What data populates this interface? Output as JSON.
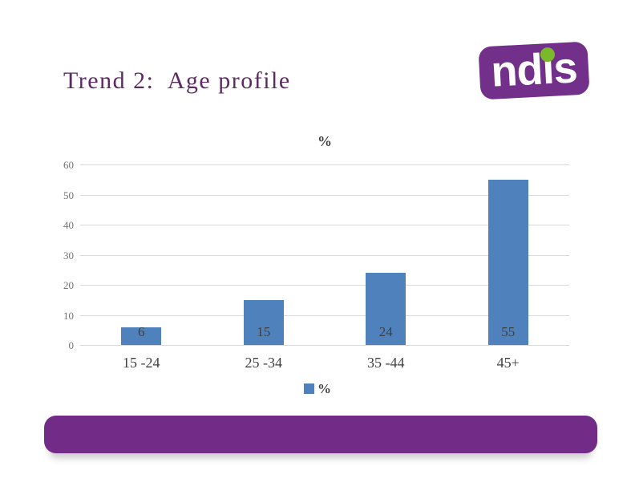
{
  "slide": {
    "title": "Trend 2:  Age profile"
  },
  "logo": {
    "text": "ndis",
    "purple": "#72308A",
    "green_dot": "#7AB929"
  },
  "chart_data": {
    "type": "bar",
    "title": "%",
    "categories": [
      "15 -24",
      "25 -34",
      "35 -44",
      "45+"
    ],
    "values": [
      6,
      15,
      24,
      55
    ],
    "series_name": "%",
    "xlabel": "",
    "ylabel": "",
    "ylim": [
      0,
      60
    ],
    "yticks": [
      60,
      50,
      40,
      30,
      20,
      10,
      0
    ],
    "grid": true,
    "legend_position": "bottom",
    "data_label_position": "inside-base",
    "bar_color": "#4F81BD",
    "gridline_color": "#D9D9D9"
  },
  "legend": {
    "label": "%"
  },
  "colors": {
    "title_text": "#5E2A63",
    "footer_bar": "#722C87",
    "axis_text": "#737373",
    "label_text": "#404040"
  }
}
